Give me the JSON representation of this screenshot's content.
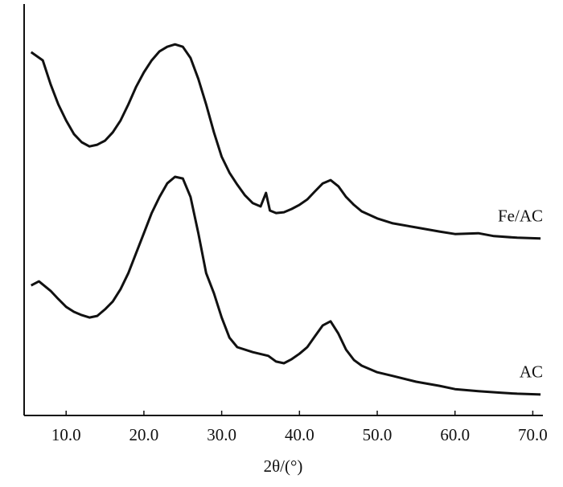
{
  "chart_data": {
    "type": "line",
    "x_label": "2θ/(°)",
    "xlim": [
      4.6,
      71.3
    ],
    "xticks": [
      {
        "value": 10,
        "label": "10.0"
      },
      {
        "value": 20,
        "label": "20.0"
      },
      {
        "value": 30,
        "label": "30.0"
      },
      {
        "value": 40,
        "label": "40.0"
      },
      {
        "value": 50,
        "label": "50.0"
      },
      {
        "value": 60,
        "label": "60.0"
      },
      {
        "value": 70,
        "label": "70.0"
      }
    ],
    "ylim": [
      0,
      100
    ],
    "series": [
      {
        "name": "Fe/AC",
        "color": "#111111",
        "x": [
          5.5,
          7,
          8,
          9,
          10,
          11,
          12,
          13,
          14,
          15,
          16,
          17,
          18,
          19,
          20,
          21,
          22,
          23,
          24,
          25,
          26,
          27,
          28,
          29,
          30,
          31,
          32,
          33,
          34,
          35,
          35.7,
          36.2,
          37,
          38,
          39,
          40,
          41,
          42,
          43,
          44,
          45,
          46,
          47,
          48,
          50,
          52,
          55,
          58,
          60,
          63,
          65,
          68,
          71
        ],
        "values": [
          88.3,
          86.3,
          80.5,
          75.6,
          71.7,
          68.4,
          66.4,
          65.4,
          65.8,
          66.8,
          68.8,
          71.7,
          75.6,
          79.9,
          83.4,
          86.3,
          88.5,
          89.6,
          90.2,
          89.6,
          86.9,
          81.8,
          75.6,
          68.8,
          62.9,
          59.0,
          56.1,
          53.5,
          51.6,
          50.8,
          54.1,
          49.8,
          49.2,
          49.4,
          50.2,
          51.2,
          52.5,
          54.5,
          56.4,
          57.2,
          55.7,
          53.1,
          51.2,
          49.6,
          47.9,
          46.7,
          45.7,
          44.7,
          44.1,
          44.3,
          43.6,
          43.2,
          43.0
        ]
      },
      {
        "name": "AC",
        "color": "#111111",
        "x": [
          5.5,
          6.5,
          8,
          9,
          10,
          11,
          12,
          13,
          14,
          15,
          16,
          17,
          18,
          19,
          20,
          21,
          22,
          23,
          24,
          25,
          26,
          27,
          28,
          29,
          30,
          31,
          32,
          34,
          36,
          37,
          38,
          39,
          40,
          41,
          42,
          43,
          44,
          45,
          46,
          47,
          48,
          50,
          52,
          55,
          58,
          60,
          63,
          66,
          68,
          71
        ],
        "values": [
          31.6,
          32.6,
          30.3,
          28.3,
          26.4,
          25.2,
          24.4,
          23.8,
          24.2,
          25.8,
          27.7,
          30.7,
          34.6,
          39.5,
          44.3,
          49.2,
          53.1,
          56.4,
          58.0,
          57.6,
          53.1,
          44.3,
          34.6,
          29.7,
          23.8,
          18.9,
          16.6,
          15.4,
          14.5,
          13.1,
          12.7,
          13.7,
          15.0,
          16.6,
          19.3,
          21.9,
          22.9,
          19.9,
          16.0,
          13.5,
          12.1,
          10.5,
          9.6,
          8.2,
          7.2,
          6.4,
          5.9,
          5.5,
          5.3,
          5.1
        ]
      }
    ]
  }
}
